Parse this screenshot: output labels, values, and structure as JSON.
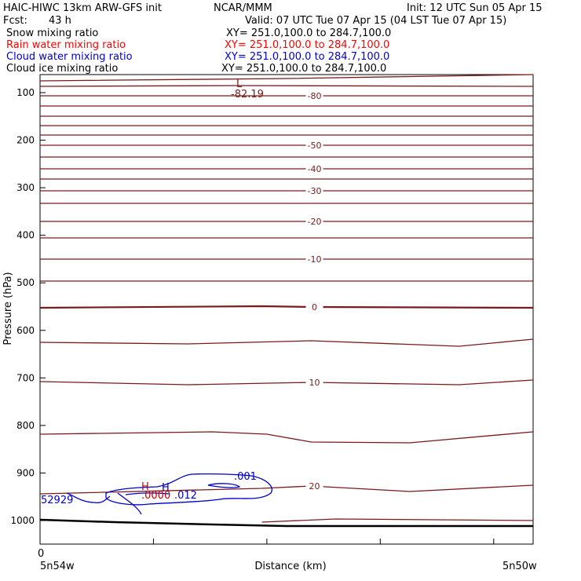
{
  "header": {
    "model": "HAIC-HIWC 13km ARW-GFS init",
    "org": "NCAR/MMM",
    "init": "Init: 12 UTC Sun 05 Apr 15",
    "fcst_label": "Fcst:",
    "fcst_value": "43 h",
    "valid": "Valid: 07 UTC Tue 07 Apr 15 (04 LST Tue 07 Apr 15)"
  },
  "fields": [
    {
      "name": "Snow mixing ratio",
      "xy": "XY= 251.0,100.0 to 284.7,100.0",
      "color": "#000000"
    },
    {
      "name": "Rain water mixing ratio",
      "xy": "XY= 251.0,100.0 to 284.7,100.0",
      "color": "#ff0000"
    },
    {
      "name": "Cloud water mixing ratio",
      "xy": "XY= 251.0,100.0 to 284.7,100.0",
      "color": "#0000cc"
    },
    {
      "name": "Cloud ice mixing ratio",
      "xy": "XY= 251.0,100.0 to 284.7,100.0",
      "color": "#000000"
    }
  ],
  "chart_data": {
    "type": "contour cross-section",
    "ylabel": "Pressure (hPa)",
    "xlabel": "Distance (km)",
    "x_start_label": "5n54w",
    "x_end_label": "5n50w",
    "x_zero_label": "0",
    "ylim": [
      1050,
      60
    ],
    "yticks": [
      100,
      200,
      300,
      400,
      500,
      600,
      700,
      800,
      900,
      1000
    ],
    "x_tick_fractions": [
      0.0,
      0.23,
      0.46,
      0.69,
      0.92
    ],
    "temperature_contours": {
      "color": "#7a1a1a",
      "lines": [
        {
          "p": [
            [
              0,
              103
            ],
            [
              0.5,
              100
            ],
            [
              1,
              95
            ]
          ]
        },
        {
          "p": [
            [
              0,
              110
            ],
            [
              0.4,
              109
            ],
            [
              1,
              110
            ]
          ]
        },
        {
          "p": [
            [
              0,
              122
            ],
            [
              1,
              122
            ]
          ],
          "label": "-80"
        },
        {
          "p": [
            [
              0,
              135
            ],
            [
              1,
              135
            ]
          ]
        },
        {
          "p": [
            [
              0,
              148
            ],
            [
              1,
              148
            ]
          ]
        },
        {
          "p": [
            [
              0,
              160
            ],
            [
              1,
              160
            ]
          ]
        },
        {
          "p": [
            [
              0,
              172
            ],
            [
              1,
              172
            ]
          ]
        },
        {
          "p": [
            [
              0,
              185
            ],
            [
              1,
              185
            ]
          ],
          "label": "-50"
        },
        {
          "p": [
            [
              0,
              200
            ],
            [
              1,
              200
            ]
          ]
        },
        {
          "p": [
            [
              0,
              215
            ],
            [
              1,
              215
            ]
          ],
          "label": "-40"
        },
        {
          "p": [
            [
              0,
              228
            ],
            [
              1,
              228
            ]
          ]
        },
        {
          "p": [
            [
              0,
              243
            ],
            [
              1,
              243
            ]
          ],
          "label": "-30"
        },
        {
          "p": [
            [
              0,
              259
            ],
            [
              1,
              259
            ]
          ]
        },
        {
          "p": [
            [
              0,
              282
            ],
            [
              1,
              282
            ]
          ],
          "label": "-20"
        },
        {
          "p": [
            [
              0,
              303
            ],
            [
              1,
              303
            ]
          ]
        },
        {
          "p": [
            [
              0,
              330
            ],
            [
              1,
              330
            ]
          ],
          "label": "-10"
        },
        {
          "p": [
            [
              0,
              358
            ],
            [
              1,
              358
            ]
          ]
        },
        {
          "p": [
            [
              0,
              392
            ],
            [
              0.45,
              390
            ],
            [
              0.55,
              391
            ],
            [
              1,
              392
            ]
          ],
          "label": "0",
          "bold": true
        },
        {
          "p": [
            [
              0,
              436
            ],
            [
              0.3,
              438
            ],
            [
              0.55,
              434
            ],
            [
              0.85,
              441
            ],
            [
              1,
              432
            ]
          ]
        },
        {
          "p": [
            [
              0,
              486
            ],
            [
              0.3,
              490
            ],
            [
              0.55,
              487
            ],
            [
              0.85,
              490
            ],
            [
              1,
              484
            ]
          ],
          "label": "10"
        },
        {
          "p": [
            [
              0,
              553
            ],
            [
              0.35,
              550
            ],
            [
              0.46,
              553
            ],
            [
              0.55,
              563
            ],
            [
              0.75,
              564
            ],
            [
              1,
              550
            ]
          ]
        },
        {
          "p": [
            [
              0,
              629
            ],
            [
              0.45,
              622
            ],
            [
              0.55,
              619
            ],
            [
              0.75,
              626
            ],
            [
              1,
              618
            ]
          ],
          "label": "20"
        },
        {
          "p": [
            [
              0.45,
              665
            ],
            [
              0.6,
              661
            ],
            [
              1,
              663
            ]
          ]
        }
      ],
      "extreme_label": "L",
      "extreme_value": "-82.19"
    },
    "cloud_water_contour": {
      "color": "#0000cc",
      "label": ".001",
      "edge_label": "52929",
      "high_label": "H"
    },
    "rain_water_contour": {
      "color": "#cc0000",
      "labels": ".0000",
      "high_label": "H",
      "value": ".012"
    },
    "terrain": {
      "color": "#000000",
      "points": [
        [
          0,
          662
        ],
        [
          0.15,
          665
        ],
        [
          0.35,
          668
        ],
        [
          0.5,
          670
        ],
        [
          1,
          670
        ]
      ]
    }
  }
}
